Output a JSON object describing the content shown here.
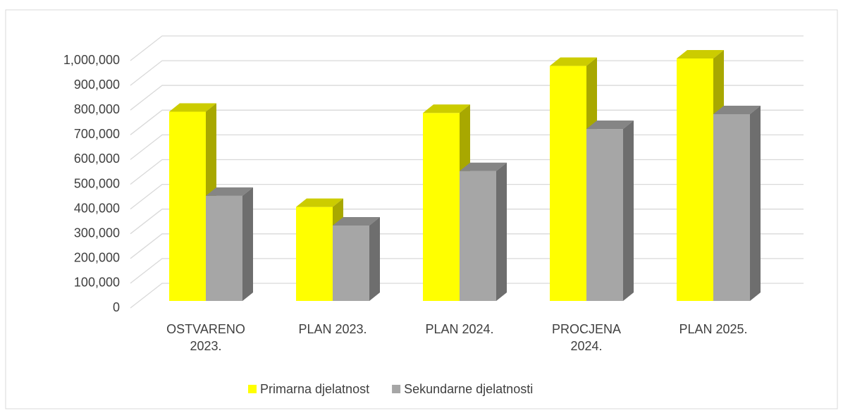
{
  "chart_data": {
    "type": "bar3d",
    "categories": [
      "OSTVARENO 2023.",
      "PLAN 2023.",
      "PLAN 2024.",
      "PROCJENA 2024.",
      "PLAN 2025."
    ],
    "series": [
      {
        "name": "Primarna djelatnost",
        "color": "#ffff00",
        "values": [
          765000,
          380000,
          760000,
          950000,
          980000
        ]
      },
      {
        "name": "Sekundarne djelatnosti",
        "color": "#a6a6a6",
        "values": [
          425000,
          305000,
          525000,
          695000,
          755000
        ]
      }
    ],
    "ylim": [
      0,
      1000000
    ],
    "yticks": [
      0,
      {
        "value": 100000,
        "label": "100,000"
      },
      {
        "value": 200000,
        "label": "200,000"
      },
      {
        "value": 300000,
        "label": "300,000"
      },
      {
        "value": 400000,
        "label": "400,000"
      },
      {
        "value": 500000,
        "label": "500,000"
      },
      {
        "value": 600000,
        "label": "600,000"
      },
      {
        "value": 700000,
        "label": "700,000"
      },
      {
        "value": 800000,
        "label": "800,000"
      },
      {
        "value": 900000,
        "label": "900,000"
      },
      {
        "value": 1000000,
        "label": "1,000,000"
      }
    ],
    "grid": true,
    "legend": "bottom"
  }
}
